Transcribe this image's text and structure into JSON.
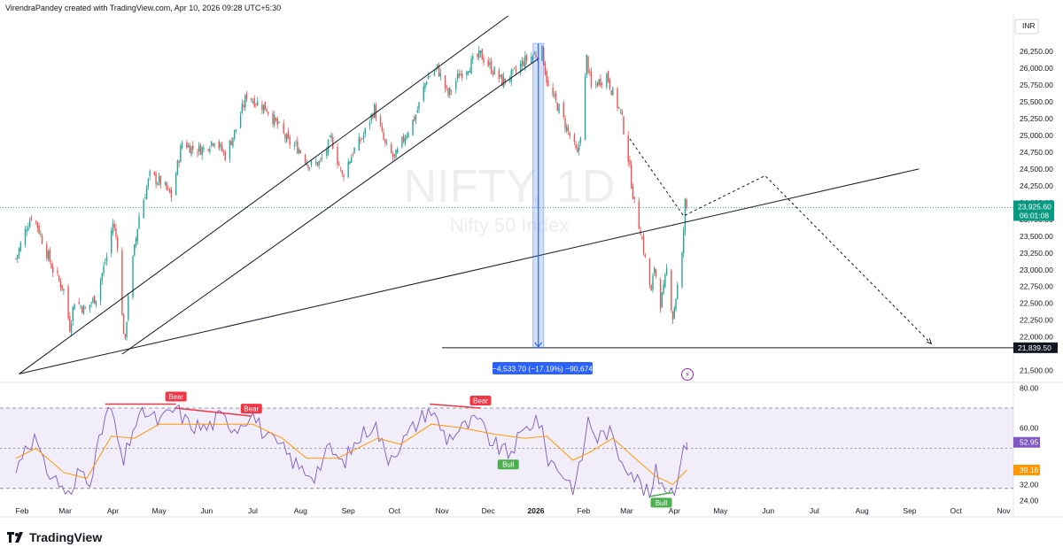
{
  "header": {
    "credit": "VirendraPandey created with TradingView.com, Apr 10, 2026 09:28 UTC+5:30"
  },
  "footer": {
    "brand": "TradingView",
    "logo_icon": "tradingview-logo-icon"
  },
  "colors": {
    "up": "#26a69a",
    "down": "#ef5350",
    "rsi": "#7e57c2",
    "rsi_ma": "#ff9800",
    "measure": "#2962ff",
    "price_tag": "#089981",
    "bear": "#f23645",
    "bull": "#4caf50"
  },
  "chart_data": [
    {
      "type": "candlestick",
      "symbol": "NIFTY, 1D",
      "subtitle": "Nifty 50 Index",
      "currency": "INR",
      "x_ticks": [
        "Feb",
        "Mar",
        "Apr",
        "May",
        "Jun",
        "Jul",
        "Aug",
        "Sep",
        "Oct",
        "Nov",
        "Dec",
        "2026",
        "Feb",
        "Mar",
        "Apr",
        "May",
        "Jun",
        "Jul",
        "Aug",
        "Sep",
        "Oct",
        "Nov"
      ],
      "y_ticks": [
        "26,250.00",
        "26,000.00",
        "25,750.00",
        "25,500.00",
        "25,250.00",
        "25,000.00",
        "24,750.00",
        "24,500.00",
        "24,250.00",
        "24,000.00",
        "23,750.00",
        "23,500.00",
        "23,250.00",
        "23,000.00",
        "22,750.00",
        "22,500.00",
        "22,250.00",
        "22,000.00",
        "21,500.00"
      ],
      "ylim": [
        21350,
        26620
      ],
      "close_path": [
        [
          "2025-01-28",
          23163
        ],
        [
          "2025-02-04",
          23650
        ],
        [
          "2025-02-08",
          23850
        ],
        [
          "2025-02-14",
          23450
        ],
        [
          "2025-02-21",
          23000
        ],
        [
          "2025-02-28",
          22700
        ],
        [
          "2025-03-04",
          22150
        ],
        [
          "2025-03-07",
          22550
        ],
        [
          "2025-03-14",
          22400
        ],
        [
          "2025-03-21",
          22600
        ],
        [
          "2025-03-28",
          23200
        ],
        [
          "2025-04-01",
          23700
        ],
        [
          "2025-04-04",
          23400
        ],
        [
          "2025-04-07",
          22300
        ],
        [
          "2025-04-09",
          21900
        ],
        [
          "2025-04-11",
          22650
        ],
        [
          "2025-04-18",
          23800
        ],
        [
          "2025-04-25",
          24400
        ],
        [
          "2025-05-02",
          24300
        ],
        [
          "2025-05-09",
          24100
        ],
        [
          "2025-05-16",
          24900
        ],
        [
          "2025-05-23",
          24800
        ],
        [
          "2025-05-30",
          24800
        ],
        [
          "2025-06-06",
          24950
        ],
        [
          "2025-06-13",
          24700
        ],
        [
          "2025-06-20",
          25100
        ],
        [
          "2025-06-27",
          25600
        ],
        [
          "2025-07-03",
          25500
        ],
        [
          "2025-07-10",
          25400
        ],
        [
          "2025-07-17",
          25150
        ],
        [
          "2025-07-24",
          24900
        ],
        [
          "2025-07-31",
          24800
        ],
        [
          "2025-08-07",
          24550
        ],
        [
          "2025-08-14",
          24600
        ],
        [
          "2025-08-21",
          24950
        ],
        [
          "2025-08-28",
          24400
        ],
        [
          "2025-09-04",
          24750
        ],
        [
          "2025-09-11",
          25000
        ],
        [
          "2025-09-18",
          25400
        ],
        [
          "2025-09-25",
          24850
        ],
        [
          "2025-10-01",
          24650
        ],
        [
          "2025-10-08",
          25000
        ],
        [
          "2025-10-15",
          25300
        ],
        [
          "2025-10-22",
          25850
        ],
        [
          "2025-10-29",
          26000
        ],
        [
          "2025-11-05",
          25600
        ],
        [
          "2025-11-12",
          25900
        ],
        [
          "2025-11-19",
          26050
        ],
        [
          "2025-11-26",
          26200
        ],
        [
          "2025-12-03",
          26000
        ],
        [
          "2025-12-10",
          25800
        ],
        [
          "2025-12-17",
          25900
        ],
        [
          "2025-12-24",
          26100
        ],
        [
          "2025-12-31",
          26200
        ],
        [
          "2026-01-05",
          26250
        ],
        [
          "2026-01-09",
          25700
        ],
        [
          "2026-01-16",
          25400
        ],
        [
          "2026-01-23",
          25000
        ],
        [
          "2026-01-28",
          24700
        ],
        [
          "2026-01-31",
          25200
        ],
        [
          "2026-02-03",
          26150
        ],
        [
          "2026-02-06",
          25700
        ],
        [
          "2026-02-11",
          25800
        ],
        [
          "2026-02-16",
          25900
        ],
        [
          "2026-02-21",
          25550
        ],
        [
          "2026-02-25",
          25350
        ],
        [
          "2026-03-01",
          24850
        ],
        [
          "2026-03-04",
          24300
        ],
        [
          "2026-03-07",
          23800
        ],
        [
          "2026-03-10",
          23600
        ],
        [
          "2026-03-13",
          23150
        ],
        [
          "2026-03-17",
          22650
        ],
        [
          "2026-03-19",
          23050
        ],
        [
          "2026-03-23",
          22500
        ],
        [
          "2026-03-25",
          22700
        ],
        [
          "2026-03-27",
          23000
        ],
        [
          "2026-03-31",
          22300
        ],
        [
          "2026-04-02",
          22600
        ],
        [
          "2026-04-06",
          23200
        ],
        [
          "2026-04-08",
          24000
        ],
        [
          "2026-04-09",
          23925
        ]
      ],
      "last_price_label": "23,925.60",
      "last_price_timer": "06:01:08",
      "target_label": "21,839.50",
      "target_price": 21839.5,
      "measure": {
        "label": "−4,533.70 (−17.19%) −90,674",
        "from": [
          "2026-01-02",
          26370
        ],
        "to": [
          "2026-01-02",
          21839.5
        ]
      },
      "trendlines": [
        {
          "from": [
            "2025-01-30",
            21450
          ],
          "to": [
            "2025-12-14",
            26780
          ]
        },
        {
          "from": [
            "2025-01-30",
            21450
          ],
          "to": [
            "2026-09-07",
            24500
          ]
        },
        {
          "from": [
            "2025-04-07",
            21745
          ],
          "to": [
            "2026-01-03",
            26150
          ]
        },
        {
          "from": [
            "2025-11-01",
            21839.5
          ],
          "to": [
            "2026-12-01",
            21839.5
          ]
        }
      ],
      "projection_path": [
        [
          "2026-03-03",
          24950
        ],
        [
          "2026-04-07",
          23800
        ],
        [
          "2026-05-30",
          24400
        ],
        [
          "2026-09-15",
          21900
        ]
      ]
    },
    {
      "type": "line",
      "indicator": "RSI",
      "y_ticks": [
        "80.00",
        "60.00",
        "32.00",
        "24.00"
      ],
      "ylim": [
        22,
        81
      ],
      "bands": {
        "upper": 70,
        "middle": 50,
        "lower": 30
      },
      "rsi_label": "52.95",
      "rsi_ma_label": "39.16",
      "rsi": [
        [
          "2025-01-28",
          38
        ],
        [
          "2025-02-03",
          52
        ],
        [
          "2025-02-10",
          55
        ],
        [
          "2025-02-14",
          42
        ],
        [
          "2025-02-21",
          36
        ],
        [
          "2025-02-28",
          30
        ],
        [
          "2025-03-05",
          25
        ],
        [
          "2025-03-10",
          40
        ],
        [
          "2025-03-17",
          35
        ],
        [
          "2025-03-24",
          55
        ],
        [
          "2025-03-28",
          70
        ],
        [
          "2025-04-02",
          64
        ],
        [
          "2025-04-07",
          40
        ],
        [
          "2025-04-14",
          60
        ],
        [
          "2025-04-22",
          68
        ],
        [
          "2025-05-01",
          63
        ],
        [
          "2025-05-12",
          70
        ],
        [
          "2025-05-20",
          62
        ],
        [
          "2025-06-01",
          60
        ],
        [
          "2025-06-10",
          66
        ],
        [
          "2025-06-20",
          60
        ],
        [
          "2025-06-30",
          68
        ],
        [
          "2025-07-10",
          55
        ],
        [
          "2025-07-20",
          50
        ],
        [
          "2025-07-31",
          40
        ],
        [
          "2025-08-10",
          37
        ],
        [
          "2025-08-20",
          50
        ],
        [
          "2025-08-28",
          42
        ],
        [
          "2025-09-08",
          55
        ],
        [
          "2025-09-18",
          63
        ],
        [
          "2025-09-26",
          45
        ],
        [
          "2025-10-05",
          52
        ],
        [
          "2025-10-15",
          62
        ],
        [
          "2025-10-24",
          70
        ],
        [
          "2025-11-04",
          55
        ],
        [
          "2025-11-14",
          60
        ],
        [
          "2025-11-24",
          64
        ],
        [
          "2025-12-04",
          52
        ],
        [
          "2025-12-14",
          47
        ],
        [
          "2025-12-24",
          58
        ],
        [
          "2026-01-02",
          66
        ],
        [
          "2026-01-09",
          45
        ],
        [
          "2026-01-18",
          38
        ],
        [
          "2026-01-26",
          30
        ],
        [
          "2026-01-30",
          42
        ],
        [
          "2026-02-04",
          64
        ],
        [
          "2026-02-10",
          55
        ],
        [
          "2026-02-17",
          59
        ],
        [
          "2026-02-24",
          47
        ],
        [
          "2026-03-03",
          40
        ],
        [
          "2026-03-09",
          33
        ],
        [
          "2026-03-16",
          26
        ],
        [
          "2026-03-20",
          38
        ],
        [
          "2026-03-25",
          32
        ],
        [
          "2026-03-31",
          28
        ],
        [
          "2026-04-04",
          40
        ],
        [
          "2026-04-09",
          52.95
        ]
      ],
      "rsi_ma": [
        [
          "2025-01-28",
          45
        ],
        [
          "2025-02-10",
          50
        ],
        [
          "2025-02-28",
          38
        ],
        [
          "2025-03-15",
          35
        ],
        [
          "2025-03-31",
          56
        ],
        [
          "2025-04-15",
          55
        ],
        [
          "2025-05-01",
          62
        ],
        [
          "2025-06-01",
          62
        ],
        [
          "2025-07-01",
          62
        ],
        [
          "2025-07-20",
          55
        ],
        [
          "2025-08-05",
          45
        ],
        [
          "2025-08-25",
          45
        ],
        [
          "2025-09-20",
          55
        ],
        [
          "2025-10-05",
          52
        ],
        [
          "2025-10-25",
          62
        ],
        [
          "2025-11-15",
          60
        ],
        [
          "2025-12-05",
          57
        ],
        [
          "2025-12-25",
          55
        ],
        [
          "2026-01-08",
          56
        ],
        [
          "2026-01-25",
          44
        ],
        [
          "2026-02-05",
          48
        ],
        [
          "2026-02-20",
          55
        ],
        [
          "2026-03-05",
          46
        ],
        [
          "2026-03-20",
          36
        ],
        [
          "2026-03-31",
          32
        ],
        [
          "2026-04-09",
          39.16
        ]
      ],
      "divergences": [
        {
          "label": "Bear",
          "kind": "bear",
          "from": [
            "2025-03-27",
            72
          ],
          "to": [
            "2025-05-12",
            72
          ]
        },
        {
          "label": "Bear",
          "kind": "bear",
          "from": [
            "2025-05-12",
            70
          ],
          "to": [
            "2025-06-30",
            66
          ]
        },
        {
          "label": "Bear",
          "kind": "bear",
          "from": [
            "2025-10-24",
            72
          ],
          "to": [
            "2025-11-26",
            70
          ]
        },
        {
          "label": "Bull",
          "kind": "bull",
          "from": [
            "2025-12-14",
            47
          ],
          "to": [
            "2025-12-14",
            47
          ]
        },
        {
          "label": "Bull",
          "kind": "bull",
          "from": [
            "2026-03-16",
            26
          ],
          "to": [
            "2026-03-31",
            28
          ]
        }
      ]
    }
  ]
}
